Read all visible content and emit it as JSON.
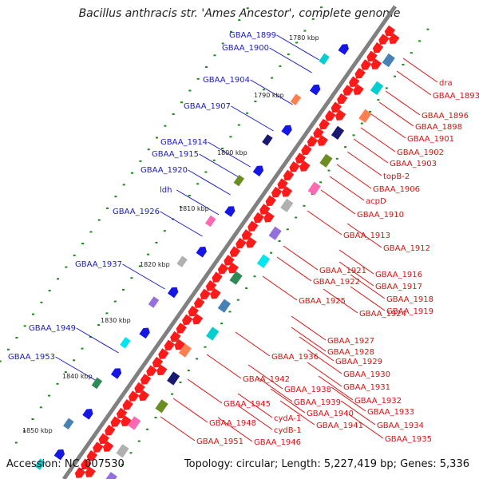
{
  "title": "Bacillus anthracis str. 'Ames Ancestor', complete genome",
  "footer": {
    "accession": "Accession: NC_007530",
    "topology": "Topology: circular; Length: 5,227,419 bp; Genes: 5,336"
  },
  "colors": {
    "left_label": "#1a1acc",
    "right_label": "#dd1111",
    "backbone": "#808080",
    "gene_red": "#ff1a1a",
    "gene_blue": "#1515e6",
    "dot_green": "#1a8a1a"
  },
  "kbp_ticks": [
    "1780 kbp",
    "1790 kbp",
    "1800 kbp",
    "1810 kbp",
    "1820 kbp",
    "1830 kbp",
    "1840 kbp",
    "1850 kbp"
  ],
  "left_labels": [
    "GBAA_1899",
    "GBAA_1900",
    "GBAA_1904",
    "GBAA_1907",
    "GBAA_1914",
    "GBAA_1915",
    "GBAA_1920",
    "ldh",
    "GBAA_1926",
    "GBAA_1937",
    "GBAA_1949",
    "GBAA_1953"
  ],
  "right_labels": [
    "dra",
    "GBAA_1893",
    "GBAA_1896",
    "GBAA_1898",
    "GBAA_1901",
    "GBAA_1902",
    "GBAA_1903",
    "topB-2",
    "GBAA_1906",
    "acpD",
    "GBAA_1910",
    "GBAA_1913",
    "GBAA_1912",
    "GBAA_1921",
    "GBAA_1916",
    "GBAA_1922",
    "GBAA_1917",
    "GBAA_1925",
    "GBAA_1918",
    "GBAA_1924",
    "GBAA_1919",
    "GBAA_1927",
    "GBAA_1928",
    "GBAA_1936",
    "GBAA_1929",
    "GBAA_1930",
    "GBAA_1942",
    "GBAA_1938",
    "GBAA_1931",
    "GBAA_1932",
    "GBAA_1939",
    "GBAA_1945",
    "GBAA_1933",
    "GBAA_1940",
    "cydA-1",
    "GBAA_1948",
    "GBAA_1941",
    "GBAA_1934",
    "cydB-1",
    "GBAA_1935",
    "GBAA_1951",
    "GBAA_1946"
  ]
}
